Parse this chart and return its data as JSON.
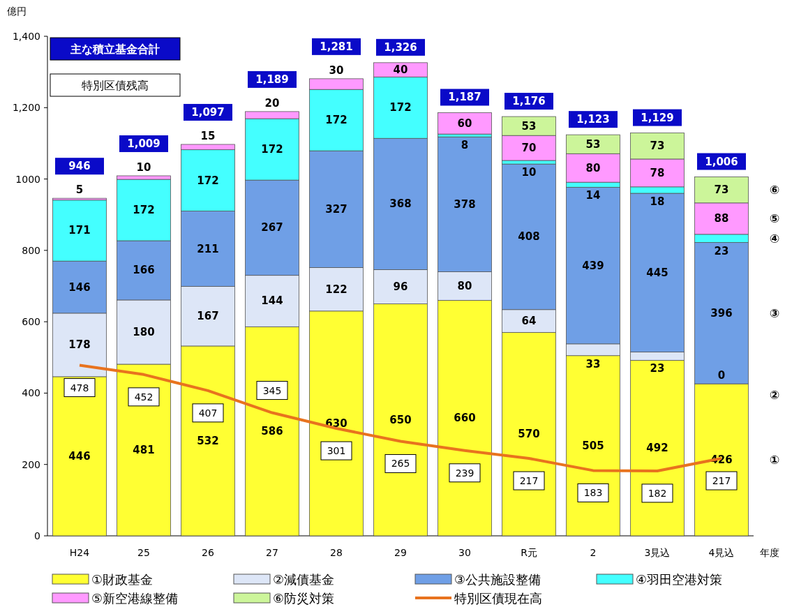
{
  "chart_data": {
    "type": "bar",
    "stacked": true,
    "ylabel": "億円",
    "xlabel": "年度",
    "categories": [
      "H24",
      "25",
      "26",
      "27",
      "28",
      "29",
      "30",
      "R元",
      "2",
      "3見込",
      "4見込"
    ],
    "ylim": [
      0,
      1400
    ],
    "yticks": [
      0,
      200,
      400,
      600,
      800,
      1000,
      {
        "value": 1200,
        "label": "1,200"
      },
      {
        "value": 1400,
        "label": "1,400"
      }
    ],
    "series": [
      {
        "name": "①財政基金",
        "color": "#ffff33",
        "values": [
          446,
          481,
          532,
          586,
          630,
          650,
          660,
          570,
          505,
          492,
          426
        ]
      },
      {
        "name": "②減債基金",
        "color": "#dde6f7",
        "values": [
          178,
          180,
          167,
          144,
          122,
          96,
          80,
          64,
          33,
          23,
          0
        ],
        "value_labels": [
          "178",
          "180",
          "167",
          "144",
          "122",
          "96",
          "80",
          "64",
          "33",
          "23",
          null
        ]
      },
      {
        "name": "③公共施設整備",
        "color": "#6f9fe6",
        "values": [
          146,
          166,
          211,
          267,
          327,
          368,
          378,
          408,
          439,
          445,
          396
        ]
      },
      {
        "name": "④羽田空港対策",
        "color": "#44ffff",
        "values": [
          171,
          172,
          172,
          172,
          172,
          172,
          8,
          10,
          14,
          18,
          23
        ]
      },
      {
        "name": "⑤新空港線整備",
        "color": "#ff99ff",
        "values": [
          5,
          10,
          15,
          20,
          30,
          40,
          60,
          70,
          80,
          78,
          88
        ]
      },
      {
        "name": "⑥防災対策",
        "color": "#ccf59a",
        "values": [
          null,
          null,
          null,
          null,
          null,
          null,
          null,
          53,
          53,
          73,
          73
        ]
      },
      {
        "name": "特別区債現在高",
        "type": "line",
        "color": "#e8731e",
        "values": [
          478,
          452,
          407,
          345,
          301,
          265,
          239,
          217,
          183,
          182,
          217
        ]
      }
    ],
    "data_labels": true,
    "totals": [
      "946",
      "1,009",
      "1,097",
      "1,189",
      "1,281",
      "1,326",
      "1,187",
      "1,176",
      "1,123",
      "1,129",
      "1,006"
    ],
    "legend": "bottom",
    "annotations": [
      "主な積立基金合計",
      "特別区債残高",
      "①",
      "②",
      "③",
      "④",
      "⑤",
      "⑥",
      {
        "text": "0",
        "x": "4見込",
        "y": 426
      }
    ]
  }
}
